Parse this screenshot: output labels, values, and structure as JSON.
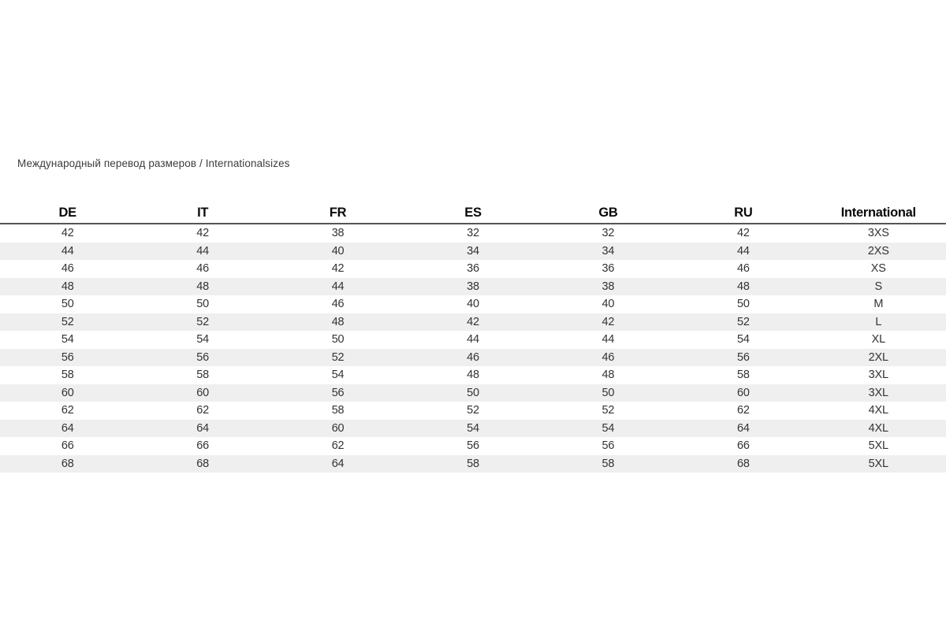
{
  "page": {
    "title": "Международный перевод размеров / Internationalsizes"
  },
  "size_table": {
    "columns": [
      "DE",
      "IT",
      "FR",
      "ES",
      "GB",
      "RU",
      "International"
    ],
    "rows": [
      [
        "42",
        "42",
        "38",
        "32",
        "32",
        "42",
        "3XS"
      ],
      [
        "44",
        "44",
        "40",
        "34",
        "34",
        "44",
        "2XS"
      ],
      [
        "46",
        "46",
        "42",
        "36",
        "36",
        "46",
        "XS"
      ],
      [
        "48",
        "48",
        "44",
        "38",
        "38",
        "48",
        "S"
      ],
      [
        "50",
        "50",
        "46",
        "40",
        "40",
        "50",
        "M"
      ],
      [
        "52",
        "52",
        "48",
        "42",
        "42",
        "52",
        "L"
      ],
      [
        "54",
        "54",
        "50",
        "44",
        "44",
        "54",
        "XL"
      ],
      [
        "56",
        "56",
        "52",
        "46",
        "46",
        "56",
        "2XL"
      ],
      [
        "58",
        "58",
        "54",
        "48",
        "48",
        "58",
        "3XL"
      ],
      [
        "60",
        "60",
        "56",
        "50",
        "50",
        "60",
        "3XL"
      ],
      [
        "62",
        "62",
        "58",
        "52",
        "52",
        "62",
        "4XL"
      ],
      [
        "64",
        "64",
        "60",
        "54",
        "54",
        "64",
        "4XL"
      ],
      [
        "66",
        "66",
        "62",
        "56",
        "56",
        "66",
        "5XL"
      ],
      [
        "68",
        "68",
        "64",
        "58",
        "58",
        "68",
        "5XL"
      ]
    ]
  },
  "colors": {
    "background": "#ffffff",
    "stripe": "#efefef",
    "header_rule": "#565656",
    "cell_text": "#333333",
    "title_text": "#3d3d3d"
  }
}
